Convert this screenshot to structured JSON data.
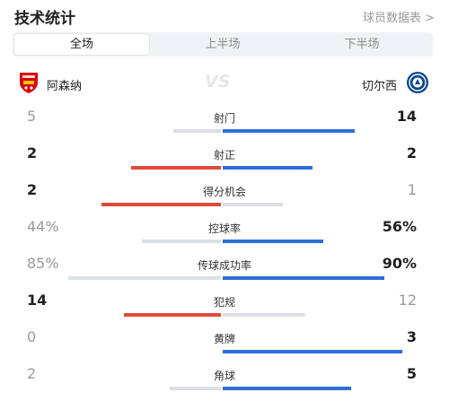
{
  "header": {
    "title": "技术统计",
    "link": "球员数据表 >"
  },
  "tabs": [
    {
      "label": "全场",
      "active": true
    },
    {
      "label": "上半场",
      "active": false
    },
    {
      "label": "下半场",
      "active": false
    }
  ],
  "teams": {
    "home": {
      "name": "阿森纳",
      "badge_icon": "arsenal-crest"
    },
    "away": {
      "name": "切尔西",
      "badge_icon": "chelsea-crest"
    },
    "vs": "VS"
  },
  "colors": {
    "home": "#e04a3b",
    "away": "#2f6ed8",
    "inactive": "#dcdfe5"
  },
  "stats": [
    {
      "label": "射门",
      "home": "5",
      "away": "14",
      "home_share": 0.263,
      "away_share": 0.737,
      "winner": "away"
    },
    {
      "label": "射正",
      "home": "2",
      "away": "2",
      "home_share": 0.5,
      "away_share": 0.5,
      "winner": "both"
    },
    {
      "label": "得分机会",
      "home": "2",
      "away": "1",
      "home_share": 0.667,
      "away_share": 0.333,
      "winner": "home"
    },
    {
      "label": "控球率",
      "home": "44%",
      "away": "56%",
      "home_share": 0.44,
      "away_share": 0.56,
      "winner": "away"
    },
    {
      "label": "传球成功率",
      "home": "85%",
      "away": "90%",
      "home_share": 0.85,
      "away_share": 0.9,
      "winner": "away"
    },
    {
      "label": "犯规",
      "home": "14",
      "away": "12",
      "home_share": 0.538,
      "away_share": 0.462,
      "winner": "home"
    },
    {
      "label": "黄牌",
      "home": "0",
      "away": "3",
      "home_share": 0.0,
      "away_share": 1.0,
      "winner": "away"
    },
    {
      "label": "角球",
      "home": "2",
      "away": "5",
      "home_share": 0.286,
      "away_share": 0.714,
      "winner": "away"
    }
  ]
}
